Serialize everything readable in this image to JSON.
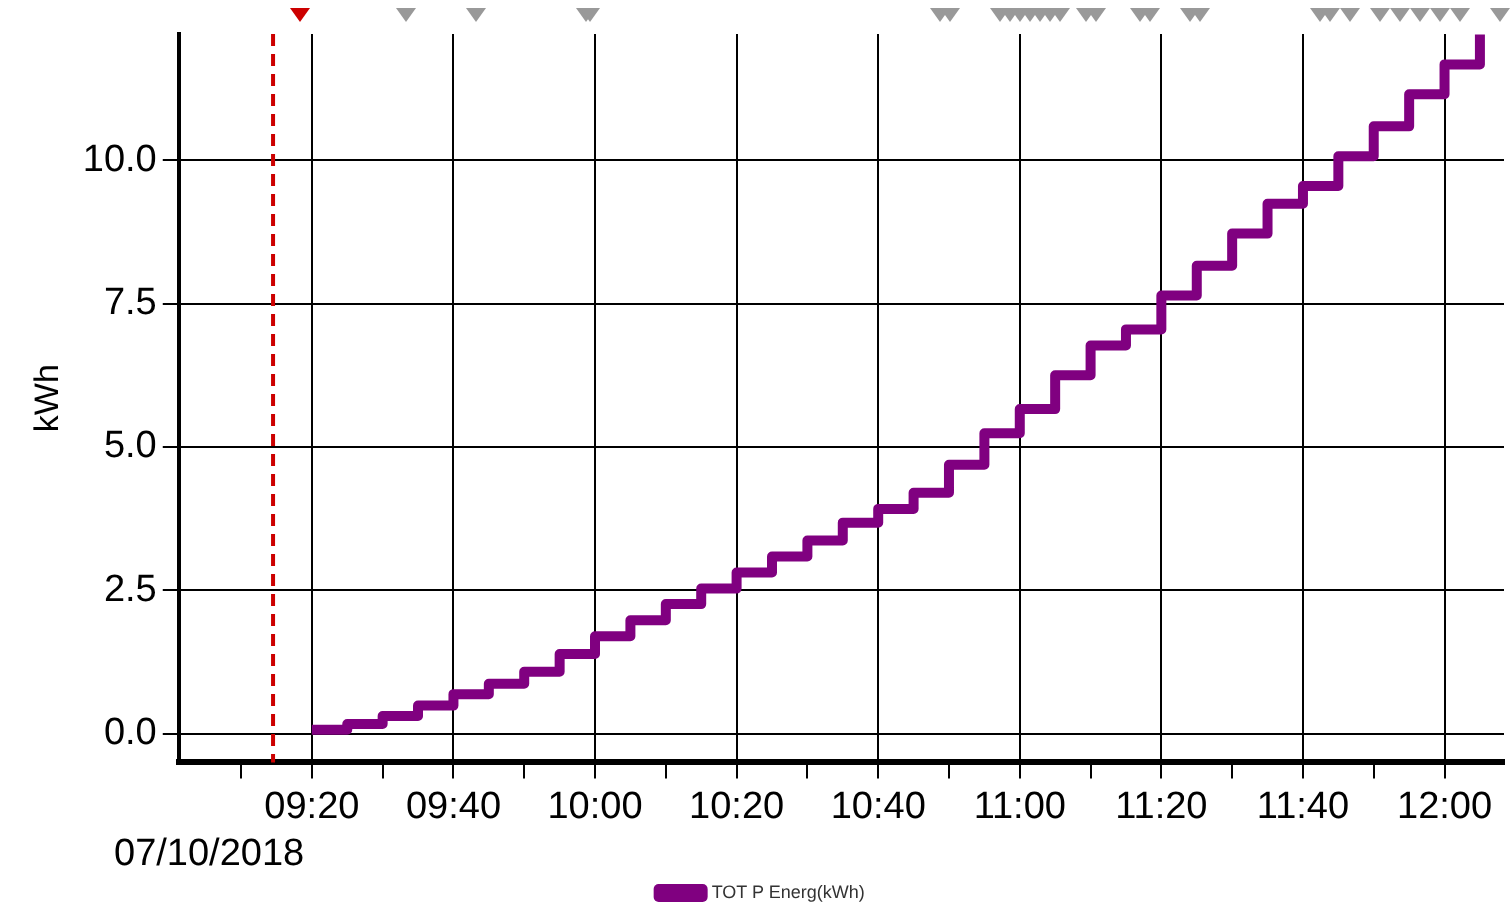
{
  "chart_data": {
    "type": "step",
    "ylabel": "kWh",
    "x": [
      9.3333,
      9.4167,
      9.5,
      9.5833,
      9.6667,
      9.75,
      9.8333,
      9.9167,
      10,
      10.0833,
      10.1667,
      10.25,
      10.3333,
      10.4167,
      10.5,
      10.5833,
      10.6667,
      10.75,
      10.8333,
      10.9167,
      11,
      11.0833,
      11.1667,
      11.25,
      11.3333,
      11.4167,
      11.5,
      11.5833,
      11.6667,
      11.75,
      11.8333,
      11.9167,
      12,
      12.0833
    ],
    "series": [
      {
        "name": "TOT P Energ(kWh)",
        "color": "#800080",
        "values": [
          0.07,
          0.17,
          0.31,
          0.49,
          0.69,
          0.87,
          1.08,
          1.39,
          1.7,
          1.98,
          2.26,
          2.53,
          2.81,
          3.09,
          3.37,
          3.68,
          3.92,
          4.2,
          4.69,
          5.24,
          5.66,
          6.25,
          6.77,
          7.05,
          7.64,
          8.16,
          8.72,
          9.24,
          9.55,
          10.07,
          10.59,
          11.15,
          11.67,
          12.19
        ]
      }
    ],
    "xlim": [
      9.02,
      12.14
    ],
    "xticks": [
      {
        "value": 9.1667,
        "label": null
      },
      {
        "value": 9.3333,
        "label": "09:20"
      },
      {
        "value": 9.5,
        "label": null
      },
      {
        "value": 9.6667,
        "label": "09:40"
      },
      {
        "value": 9.8333,
        "label": null
      },
      {
        "value": 10,
        "label": "10:00"
      },
      {
        "value": 10.1667,
        "label": null
      },
      {
        "value": 10.3333,
        "label": "10:20"
      },
      {
        "value": 10.5,
        "label": null
      },
      {
        "value": 10.6667,
        "label": "10:40"
      },
      {
        "value": 10.8333,
        "label": null
      },
      {
        "value": 11,
        "label": "11:00"
      },
      {
        "value": 11.1667,
        "label": null
      },
      {
        "value": 11.3333,
        "label": "11:20"
      },
      {
        "value": 11.5,
        "label": null
      },
      {
        "value": 11.6667,
        "label": "11:40"
      },
      {
        "value": 11.8333,
        "label": null
      },
      {
        "value": 12,
        "label": "12:00"
      }
    ],
    "ylim": [
      -0.5,
      12.2
    ],
    "yticks": [
      {
        "value": 0,
        "label": "0.0"
      },
      {
        "value": 2.5,
        "label": "2.5"
      },
      {
        "value": 5,
        "label": "5.0"
      },
      {
        "value": 7.5,
        "label": "7.5"
      },
      {
        "value": 10,
        "label": "10.0"
      }
    ],
    "ref_lines": [
      {
        "axis": "x",
        "value": 9.242,
        "color": "#cc0000",
        "line_style": "dashed"
      }
    ],
    "annotations": [
      "07/10/2018"
    ],
    "grid": true,
    "legend": "bottom",
    "line_style": "solid",
    "marker": "none"
  }
}
